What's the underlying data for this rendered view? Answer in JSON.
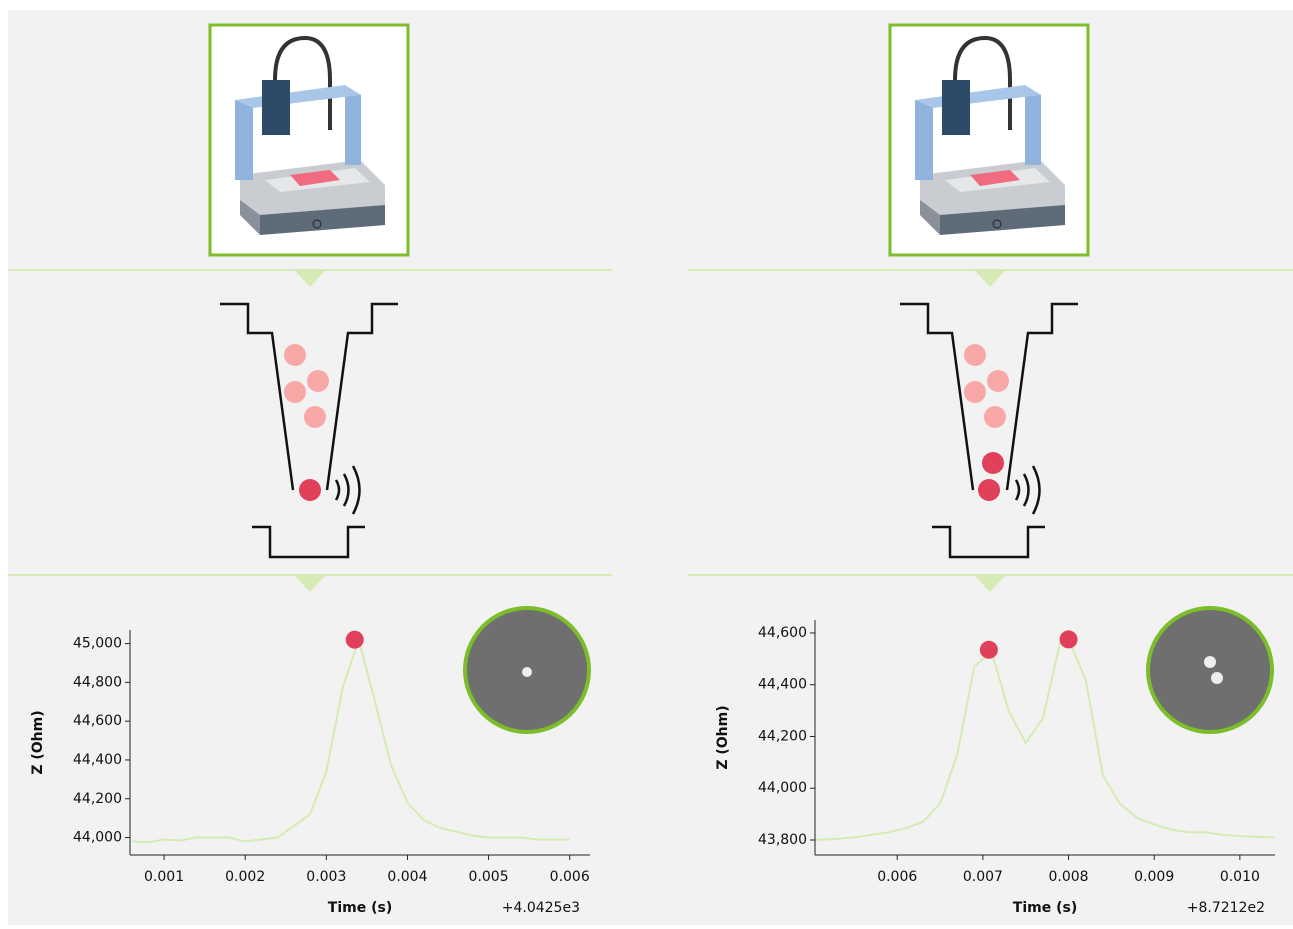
{
  "chart_data": [
    {
      "type": "line",
      "xlabel": "Time (s)",
      "ylabel": "Z (Ohm)",
      "offset_text": "+4.0425e3",
      "x": [
        0.0006,
        0.0008,
        0.001,
        0.0012,
        0.0014,
        0.0016,
        0.0018,
        0.002,
        0.0022,
        0.0024,
        0.0026,
        0.0028,
        0.003,
        0.0032,
        0.0034,
        0.0036,
        0.0038,
        0.004,
        0.0042,
        0.0044,
        0.0046,
        0.0048,
        0.005,
        0.0052,
        0.0054,
        0.0056,
        0.0058,
        0.006
      ],
      "values": [
        43980,
        43975,
        43990,
        43985,
        44000,
        44000,
        44000,
        43980,
        43990,
        44000,
        44060,
        44120,
        44340,
        44770,
        45020,
        44700,
        44370,
        44180,
        44090,
        44050,
        44030,
        44010,
        44000,
        44000,
        44000,
        43990,
        43990,
        43990
      ],
      "color": "#d4ecb2",
      "points": {
        "x": [
          0.00335
        ],
        "values": [
          45020
        ],
        "color": "#e0405a"
      },
      "xlim": [
        0.00058,
        0.00625
      ],
      "ylim": [
        43910,
        45070
      ],
      "xticks": [
        0.001,
        0.002,
        0.003,
        0.004,
        0.005,
        0.006
      ],
      "yticks": [
        {
          "value": 44000,
          "label": "44,000"
        },
        {
          "value": 44200,
          "label": "44,200"
        },
        {
          "value": 44400,
          "label": "44,400"
        },
        {
          "value": 44600,
          "label": "44,600"
        },
        {
          "value": 44800,
          "label": "44,800"
        },
        {
          "value": 45000,
          "label": "45,000"
        }
      ]
    },
    {
      "type": "line",
      "xlabel": "Time (s)",
      "ylabel": "Z (Ohm)",
      "offset_text": "+8.7212e2",
      "x": [
        0.00505,
        0.0053,
        0.0055,
        0.0057,
        0.0059,
        0.0061,
        0.0063,
        0.0065,
        0.0067,
        0.0069,
        0.0071,
        0.0073,
        0.0075,
        0.0077,
        0.0079,
        0.008,
        0.0082,
        0.0084,
        0.0086,
        0.0088,
        0.009,
        0.0092,
        0.0094,
        0.0096,
        0.0098,
        0.01,
        0.0102,
        0.0104
      ],
      "values": [
        43800,
        43805,
        43810,
        43820,
        43830,
        43845,
        43870,
        43940,
        44130,
        44470,
        44530,
        44300,
        44175,
        44270,
        44560,
        44575,
        44420,
        44050,
        43940,
        43885,
        43860,
        43840,
        43830,
        43830,
        43820,
        43815,
        43812,
        43810
      ],
      "color": "#d4ecb2",
      "points": {
        "x": [
          0.00707,
          0.008
        ],
        "values": [
          44535,
          44575
        ],
        "color": "#e0405a"
      },
      "xlim": [
        0.00504,
        0.01041
      ],
      "ylim": [
        43742,
        44650
      ],
      "xticks": [
        0.006,
        0.007,
        0.008,
        0.009,
        {
          "value": 0.01,
          "label": "0.010"
        }
      ],
      "yticks": [
        {
          "value": 43800,
          "label": "43,800"
        },
        {
          "value": 44000,
          "label": "44,000"
        },
        {
          "value": 44200,
          "label": "44,200"
        },
        {
          "value": 44400,
          "label": "44,400"
        },
        {
          "value": 44600,
          "label": "44,600"
        }
      ]
    }
  ]
}
